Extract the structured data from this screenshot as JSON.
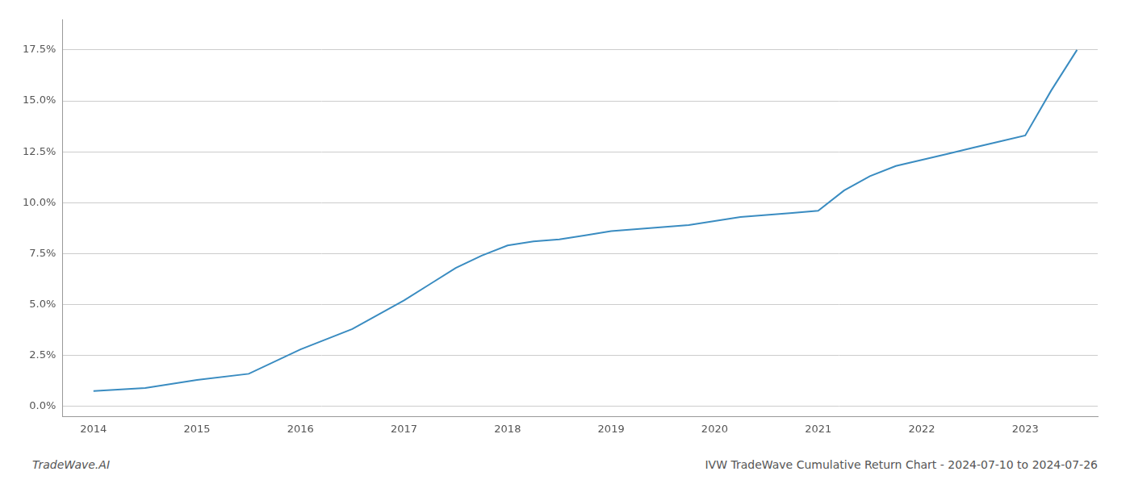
{
  "chart_data": {
    "type": "line",
    "title": "IVW TradeWave Cumulative Return Chart - 2024-07-10 to 2024-07-26",
    "annotations": [
      "TradeWave.AI"
    ],
    "x": [
      2014,
      2014.5,
      2015,
      2015.5,
      2016,
      2016.5,
      2017,
      2017.25,
      2017.5,
      2017.75,
      2018,
      2018.25,
      2018.5,
      2018.75,
      2019,
      2019.25,
      2019.5,
      2019.75,
      2020,
      2020.25,
      2020.5,
      2020.75,
      2021,
      2021.25,
      2021.5,
      2021.75,
      2022,
      2022.25,
      2022.5,
      2022.75,
      2023,
      2023.25,
      2023.5
    ],
    "values": [
      0.0075,
      0.009,
      0.013,
      0.016,
      0.028,
      0.038,
      0.052,
      0.06,
      0.068,
      0.074,
      0.079,
      0.081,
      0.082,
      0.084,
      0.086,
      0.087,
      0.088,
      0.089,
      0.091,
      0.093,
      0.094,
      0.095,
      0.096,
      0.106,
      0.113,
      0.118,
      0.121,
      0.124,
      0.127,
      0.13,
      0.133,
      0.155,
      0.175
    ],
    "color": "#3a8cc1",
    "xlim": [
      2013.7,
      2023.7
    ],
    "xticks": [
      2014,
      2015,
      2016,
      2017,
      2018,
      2019,
      2020,
      2021,
      2022,
      2023
    ],
    "ylim": [
      -0.005,
      0.19
    ],
    "yticks": [
      {
        "value": 0.0,
        "label": "0.0%"
      },
      {
        "value": 0.025,
        "label": "2.5%"
      },
      {
        "value": 0.05,
        "label": "5.0%"
      },
      {
        "value": 0.075,
        "label": "7.5%"
      },
      {
        "value": 0.1,
        "label": "10.0%"
      },
      {
        "value": 0.125,
        "label": "12.5%"
      },
      {
        "value": 0.15,
        "label": "15.0%"
      },
      {
        "value": 0.175,
        "label": "17.5%"
      }
    ],
    "grid": "y"
  }
}
